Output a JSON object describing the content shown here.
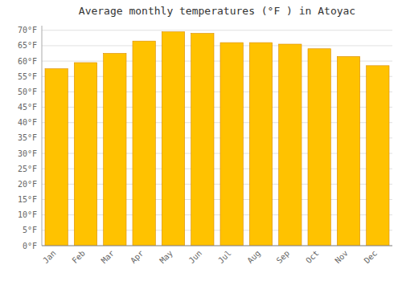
{
  "chart_data": {
    "type": "bar",
    "title": "Average monthly temperatures (°F ) in Atoyac",
    "categories": [
      "Jan",
      "Feb",
      "Mar",
      "Apr",
      "May",
      "Jun",
      "Jul",
      "Aug",
      "Sep",
      "Oct",
      "Nov",
      "Dec"
    ],
    "values": [
      57.5,
      59.5,
      62.5,
      66.5,
      69.5,
      69.0,
      66.0,
      66.0,
      65.5,
      64.0,
      61.5,
      58.5
    ],
    "color": "#FFC200",
    "ylim": [
      0,
      71.5
    ],
    "yticks": [
      {
        "value": 0,
        "label": "0°F"
      },
      {
        "value": 5,
        "label": "5°F"
      },
      {
        "value": 10,
        "label": "10°F"
      },
      {
        "value": 15,
        "label": "15°F"
      },
      {
        "value": 20,
        "label": "20°F"
      },
      {
        "value": 25,
        "label": "25°F"
      },
      {
        "value": 30,
        "label": "30°F"
      },
      {
        "value": 35,
        "label": "35°F"
      },
      {
        "value": 40,
        "label": "40°F"
      },
      {
        "value": 45,
        "label": "45°F"
      },
      {
        "value": 50,
        "label": "50°F"
      },
      {
        "value": 55,
        "label": "55°F"
      },
      {
        "value": 60,
        "label": "60°F"
      },
      {
        "value": 65,
        "label": "65°F"
      },
      {
        "value": 70,
        "label": "70°F"
      }
    ],
    "grid": true
  }
}
